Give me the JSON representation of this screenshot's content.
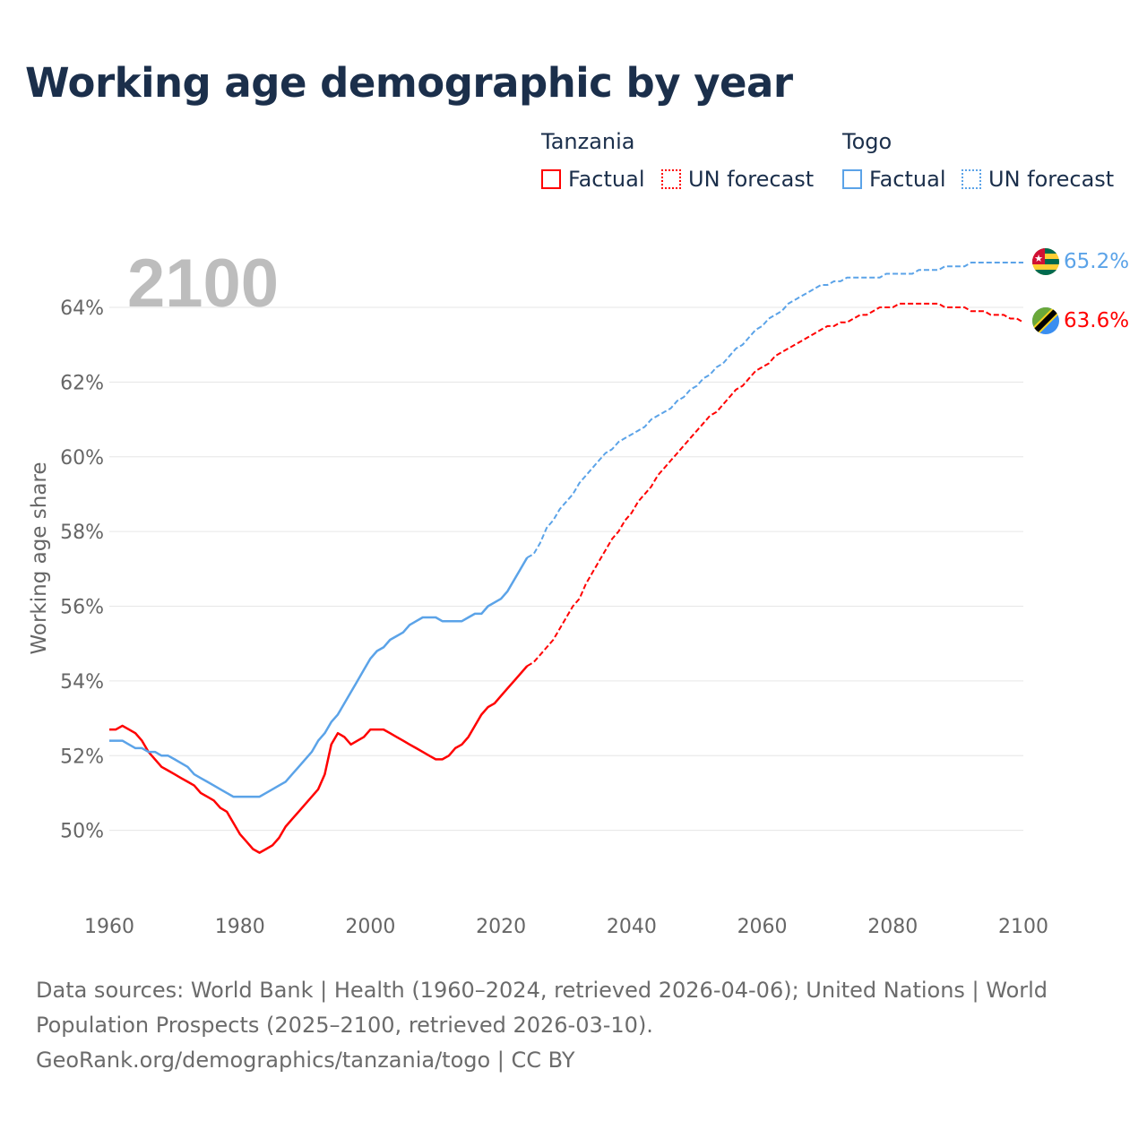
{
  "title": "Working age demographic by year",
  "legend": {
    "groups": [
      {
        "name": "Tanzania",
        "color": "#ff0000",
        "items": [
          "Factual",
          "UN forecast"
        ]
      },
      {
        "name": "Togo",
        "color": "#5ba3e8",
        "items": [
          "Factual",
          "UN forecast"
        ]
      }
    ]
  },
  "year_label": "2100",
  "end_labels": {
    "togo": "65.2%",
    "tanzania": "63.6%"
  },
  "flags": [
    "togo-flag-icon",
    "tanzania-flag-icon"
  ],
  "footer": {
    "line1": "Data sources: World Bank | Health (1960–2024, retrieved 2026-04-06); United Nations | World",
    "line2": "Population Prospects (2025–2100, retrieved 2026-03-10).",
    "line3": "GeoRank.org/demographics/tanzania/togo | CC BY"
  },
  "chart_data": {
    "type": "line",
    "title": "Working age demographic by year",
    "xlabel": "",
    "ylabel": "Working age share",
    "xlim": [
      1960,
      2100
    ],
    "ylim": [
      48,
      65.8
    ],
    "x_ticks": [
      1960,
      1980,
      2000,
      2020,
      2040,
      2060,
      2080,
      2100
    ],
    "x_tick_labels": [
      "1960",
      "1980",
      "2000",
      "2020",
      "2040",
      "2060",
      "2080",
      "2100"
    ],
    "y_ticks": [
      50,
      52,
      54,
      56,
      58,
      60,
      62,
      64
    ],
    "y_tick_labels": [
      "50%",
      "52%",
      "54%",
      "56%",
      "58%",
      "60%",
      "62%",
      "64%"
    ],
    "grid": true,
    "legend_position": "top-right",
    "series": [
      {
        "name": "Tanzania Factual",
        "color": "#ff0000",
        "style": "solid",
        "start": 1960,
        "values": [
          52.7,
          52.7,
          52.8,
          52.7,
          52.6,
          52.4,
          52.1,
          51.9,
          51.7,
          51.6,
          51.5,
          51.4,
          51.3,
          51.2,
          51.0,
          50.9,
          50.8,
          50.6,
          50.5,
          50.2,
          49.9,
          49.7,
          49.5,
          49.4,
          49.5,
          49.6,
          49.8,
          50.1,
          50.3,
          50.5,
          50.7,
          50.9,
          51.1,
          51.5,
          52.3,
          52.6,
          52.5,
          52.3,
          52.4,
          52.5,
          52.7,
          52.7,
          52.7,
          52.6,
          52.5,
          52.4,
          52.3,
          52.2,
          52.1,
          52.0,
          51.9,
          51.9,
          52.0,
          52.2,
          52.3,
          52.5,
          52.8,
          53.1,
          53.3,
          53.4,
          53.6,
          53.8,
          54.0,
          54.2,
          54.4
        ]
      },
      {
        "name": "Tanzania UN forecast",
        "color": "#ff0000",
        "style": "dashed",
        "start": 2024,
        "values": [
          54.4,
          54.5,
          54.7,
          54.9,
          55.1,
          55.4,
          55.7,
          56.0,
          56.2,
          56.6,
          56.9,
          57.2,
          57.5,
          57.8,
          58.0,
          58.3,
          58.5,
          58.8,
          59.0,
          59.2,
          59.5,
          59.7,
          59.9,
          60.1,
          60.3,
          60.5,
          60.7,
          60.9,
          61.1,
          61.2,
          61.4,
          61.6,
          61.8,
          61.9,
          62.1,
          62.3,
          62.4,
          62.5,
          62.7,
          62.8,
          62.9,
          63.0,
          63.1,
          63.2,
          63.3,
          63.4,
          63.5,
          63.5,
          63.6,
          63.6,
          63.7,
          63.8,
          63.8,
          63.9,
          64.0,
          64.0,
          64.0,
          64.1,
          64.1,
          64.1,
          64.1,
          64.1,
          64.1,
          64.1,
          64.0,
          64.0,
          64.0,
          64.0,
          63.9,
          63.9,
          63.9,
          63.8,
          63.8,
          63.8,
          63.7,
          63.7,
          63.6
        ]
      },
      {
        "name": "Togo Factual",
        "color": "#5ba3e8",
        "style": "solid",
        "start": 1960,
        "values": [
          52.4,
          52.4,
          52.4,
          52.3,
          52.2,
          52.2,
          52.1,
          52.1,
          52.0,
          52.0,
          51.9,
          51.8,
          51.7,
          51.5,
          51.4,
          51.3,
          51.2,
          51.1,
          51.0,
          50.9,
          50.9,
          50.9,
          50.9,
          50.9,
          51.0,
          51.1,
          51.2,
          51.3,
          51.5,
          51.7,
          51.9,
          52.1,
          52.4,
          52.6,
          52.9,
          53.1,
          53.4,
          53.7,
          54.0,
          54.3,
          54.6,
          54.8,
          54.9,
          55.1,
          55.2,
          55.3,
          55.5,
          55.6,
          55.7,
          55.7,
          55.7,
          55.6,
          55.6,
          55.6,
          55.6,
          55.7,
          55.8,
          55.8,
          56.0,
          56.1,
          56.2,
          56.4,
          56.7,
          57.0,
          57.3
        ]
      },
      {
        "name": "Togo UN forecast",
        "color": "#5ba3e8",
        "style": "dashed",
        "start": 2024,
        "values": [
          57.3,
          57.4,
          57.7,
          58.1,
          58.3,
          58.6,
          58.8,
          59.0,
          59.3,
          59.5,
          59.7,
          59.9,
          60.1,
          60.2,
          60.4,
          60.5,
          60.6,
          60.7,
          60.8,
          61.0,
          61.1,
          61.2,
          61.3,
          61.5,
          61.6,
          61.8,
          61.9,
          62.1,
          62.2,
          62.4,
          62.5,
          62.7,
          62.9,
          63.0,
          63.2,
          63.4,
          63.5,
          63.7,
          63.8,
          63.9,
          64.1,
          64.2,
          64.3,
          64.4,
          64.5,
          64.6,
          64.6,
          64.7,
          64.7,
          64.8,
          64.8,
          64.8,
          64.8,
          64.8,
          64.8,
          64.9,
          64.9,
          64.9,
          64.9,
          64.9,
          65.0,
          65.0,
          65.0,
          65.0,
          65.1,
          65.1,
          65.1,
          65.1,
          65.2,
          65.2,
          65.2,
          65.2,
          65.2,
          65.2,
          65.2,
          65.2,
          65.2
        ]
      }
    ]
  }
}
